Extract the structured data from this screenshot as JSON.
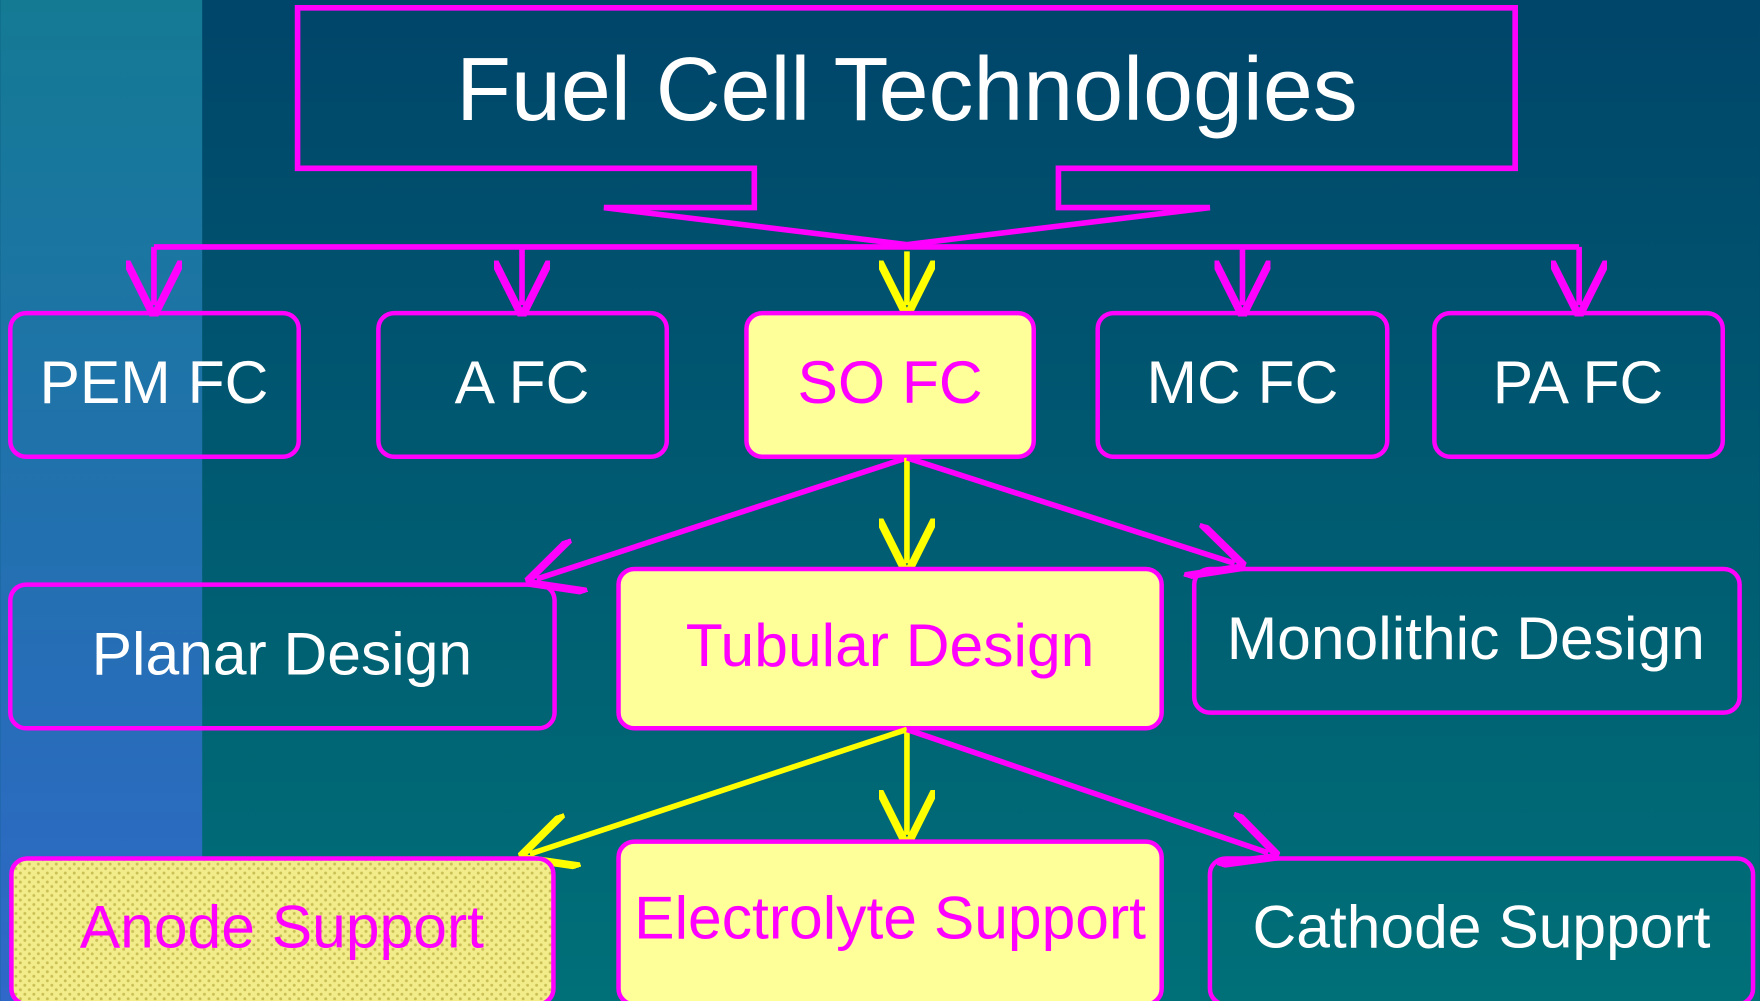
{
  "title": "Fuel Cell Technologies",
  "types": [
    {
      "label": "PEM FC"
    },
    {
      "label": "A FC"
    },
    {
      "label": "SO FC"
    },
    {
      "label": "MC FC"
    },
    {
      "label": "PA FC"
    }
  ],
  "designs": [
    {
      "label": "Planar Design"
    },
    {
      "label": "Tubular Design"
    },
    {
      "label": "Monolithic Design"
    }
  ],
  "supports": [
    {
      "label": "Anode Support"
    },
    {
      "label": "Electrolyte Support"
    },
    {
      "label": "Cathode Support"
    }
  ]
}
